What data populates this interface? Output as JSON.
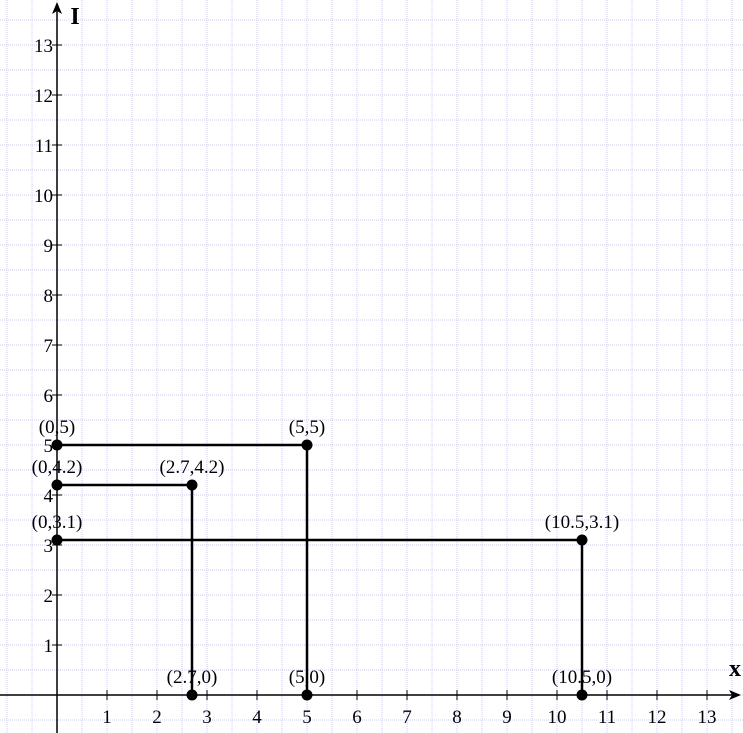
{
  "chart_data": {
    "type": "line",
    "xlabel": "x",
    "ylabel": "I",
    "xlim": [
      -1.14,
      13.72
    ],
    "ylim": [
      -0.76,
      13.9
    ],
    "xticks": [
      1,
      2,
      3,
      4,
      5,
      6,
      7,
      8,
      9,
      10,
      11,
      12,
      13
    ],
    "yticks": [
      1,
      2,
      3,
      4,
      5,
      6,
      7,
      8,
      9,
      10,
      11,
      12,
      13
    ],
    "grid": true,
    "color": "#000000",
    "grid_color": "#c8cdf0",
    "series": [
      {
        "x": [
          0,
          5,
          5
        ],
        "values": [
          5,
          5,
          0
        ],
        "value_labels": [
          "(0,5)",
          "(5,5)",
          "(5,0)"
        ]
      },
      {
        "x": [
          0,
          2.7,
          2.7
        ],
        "values": [
          4.2,
          4.2,
          0
        ],
        "value_labels": [
          "(0,4.2)",
          "(2.7,4.2)",
          "(2.7,0)"
        ]
      },
      {
        "x": [
          0,
          10.5,
          10.5
        ],
        "values": [
          3.1,
          3.1,
          0
        ],
        "value_labels": [
          "(0,3.1)",
          "(10.5,3.1)",
          "(10.5,0)"
        ]
      }
    ]
  }
}
